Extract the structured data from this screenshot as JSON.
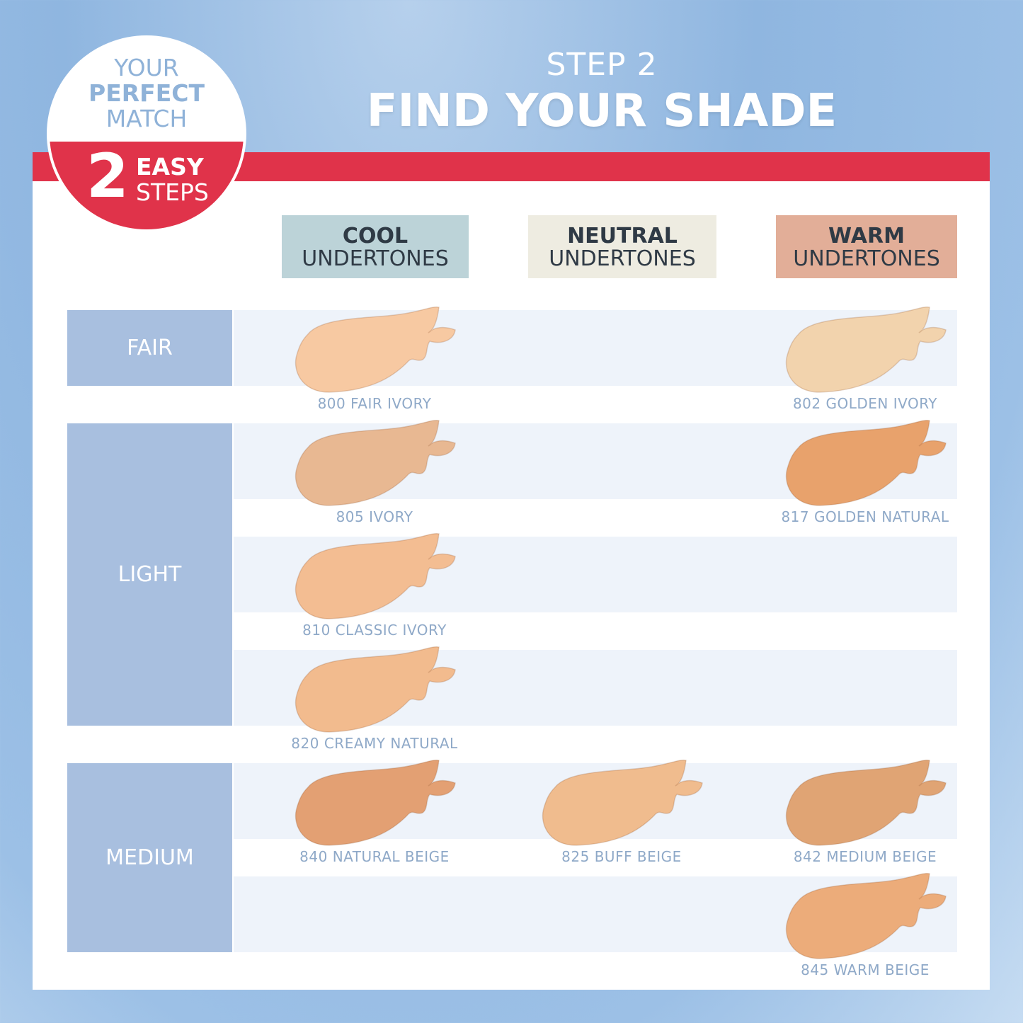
{
  "badge": {
    "line1": "YOUR",
    "line2": "PERFECT",
    "line3": "MATCH",
    "number": "2",
    "line4": "EASY",
    "line5": "STEPS"
  },
  "header": {
    "step": "STEP 2",
    "title": "FIND YOUR SHADE"
  },
  "colors": {
    "accent_red": "#e0334a",
    "category_blue": "#a8bfdf",
    "band": "#eef3fa"
  },
  "undertones": [
    {
      "top": "COOL",
      "bottom": "UNDERTONES",
      "color": "#bcd3d8"
    },
    {
      "top": "NEUTRAL",
      "bottom": "UNDERTONES",
      "color": "#eeece1"
    },
    {
      "top": "WARM",
      "bottom": "UNDERTONES",
      "color": "#e2ae98"
    }
  ],
  "categories": [
    "FAIR",
    "LIGHT",
    "MEDIUM"
  ],
  "shades": [
    {
      "name": "800 FAIR IVORY",
      "row": 0,
      "col": 0,
      "color": "#f7c9a2"
    },
    {
      "name": "802 GOLDEN IVORY",
      "row": 0,
      "col": 2,
      "color": "#f2d3ad"
    },
    {
      "name": "805 IVORY",
      "row": 1,
      "col": 0,
      "color": "#e8b892"
    },
    {
      "name": "817 GOLDEN NATURAL",
      "row": 1,
      "col": 2,
      "color": "#e8a26c"
    },
    {
      "name": "810 CLASSIC IVORY",
      "row": 2,
      "col": 0,
      "color": "#f3bd92"
    },
    {
      "name": "820 CREAMY NATURAL",
      "row": 3,
      "col": 0,
      "color": "#f2bb8e"
    },
    {
      "name": "840 NATURAL BEIGE",
      "row": 4,
      "col": 0,
      "color": "#e3a073"
    },
    {
      "name": "825 BUFF BEIGE",
      "row": 4,
      "col": 1,
      "color": "#f0bc8e"
    },
    {
      "name": "842 MEDIUM BEIGE",
      "row": 4,
      "col": 2,
      "color": "#e0a474"
    },
    {
      "name": "845 WARM BEIGE",
      "row": 5,
      "col": 2,
      "color": "#ecac7a"
    }
  ]
}
